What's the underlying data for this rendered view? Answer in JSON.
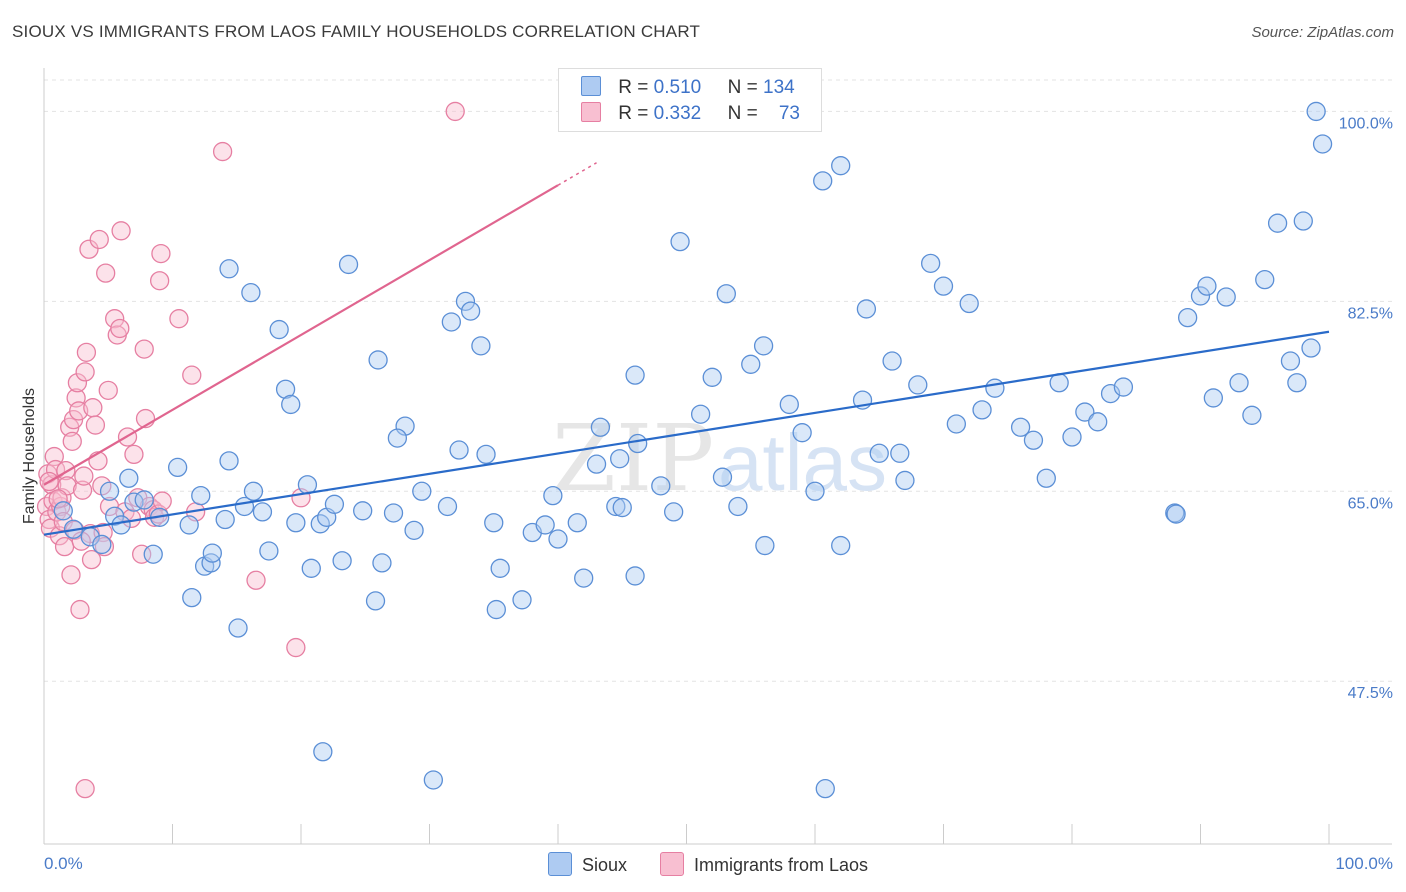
{
  "header": {
    "title": "SIOUX VS IMMIGRANTS FROM LAOS FAMILY HOUSEHOLDS CORRELATION CHART",
    "source": "Source: ZipAtlas.com"
  },
  "legend": {
    "r_label": "R =",
    "n_label": "N =",
    "rows": [
      {
        "r": "0.510",
        "n": "134"
      },
      {
        "r": "0.332",
        "n": "73"
      }
    ]
  },
  "watermark": {
    "zip": "ZIP",
    "atlas": "atlas"
  },
  "colors": {
    "sioux_fill": "#aecbf2",
    "sioux_stroke": "#5b8fd6",
    "sioux_line": "#2a6bc9",
    "laos_fill": "#f8bfd1",
    "laos_stroke": "#e67fa2",
    "laos_line": "#e0658f",
    "tick_text": "#4a7bc8",
    "grid": "#e3e3e3"
  },
  "chart_data": {
    "type": "scatter",
    "title": "SIOUX VS IMMIGRANTS FROM LAOS FAMILY HOUSEHOLDS CORRELATION CHART",
    "xlabel": "",
    "ylabel": "Family Households",
    "xlim": [
      0,
      100
    ],
    "ylim": [
      32.5,
      104
    ],
    "x_tick_labels": [
      "0.0%",
      "100.0%"
    ],
    "y_ticks": [
      {
        "value": 47.5,
        "label": "47.5%"
      },
      {
        "value": 65.0,
        "label": "65.0%"
      },
      {
        "value": 82.5,
        "label": "82.5%"
      },
      {
        "value": 100.0,
        "label": "100.0%"
      }
    ],
    "series": [
      {
        "name": "Sioux",
        "r": 0.51,
        "n": 134,
        "trend": {
          "x": [
            0,
            100
          ],
          "y": [
            61.0,
            79.7
          ]
        },
        "points": [
          [
            1.5,
            63.2
          ],
          [
            2.3,
            61.5
          ],
          [
            3.6,
            60.8
          ],
          [
            4.5,
            60.1
          ],
          [
            5.5,
            62.7
          ],
          [
            6.0,
            61.9
          ],
          [
            5.1,
            65.0
          ],
          [
            7.0,
            64.0
          ],
          [
            6.6,
            66.2
          ],
          [
            7.8,
            64.2
          ],
          [
            8.5,
            59.2
          ],
          [
            9.0,
            62.6
          ],
          [
            10.4,
            67.2
          ],
          [
            11.5,
            55.2
          ],
          [
            12.2,
            64.6
          ],
          [
            11.3,
            61.9
          ],
          [
            12.5,
            58.1
          ],
          [
            13.0,
            58.4
          ],
          [
            13.1,
            59.3
          ],
          [
            14.1,
            62.4
          ],
          [
            14.4,
            67.8
          ],
          [
            15.1,
            52.4
          ],
          [
            15.6,
            63.6
          ],
          [
            14.4,
            85.5
          ],
          [
            16.1,
            83.3
          ],
          [
            16.3,
            65.0
          ],
          [
            17.0,
            63.1
          ],
          [
            17.5,
            59.5
          ],
          [
            18.3,
            79.9
          ],
          [
            18.8,
            74.4
          ],
          [
            19.2,
            73.0
          ],
          [
            19.6,
            62.1
          ],
          [
            20.5,
            65.6
          ],
          [
            20.8,
            57.9
          ],
          [
            21.5,
            62.0
          ],
          [
            22.0,
            62.6
          ],
          [
            22.6,
            63.8
          ],
          [
            23.2,
            58.6
          ],
          [
            21.7,
            41.0
          ],
          [
            23.7,
            85.9
          ],
          [
            24.8,
            63.2
          ],
          [
            25.8,
            54.9
          ],
          [
            26.3,
            58.4
          ],
          [
            26.0,
            77.1
          ],
          [
            27.2,
            63.0
          ],
          [
            28.1,
            71.0
          ],
          [
            28.8,
            61.4
          ],
          [
            29.4,
            65.0
          ],
          [
            30.3,
            38.4
          ],
          [
            31.4,
            63.6
          ],
          [
            31.7,
            80.6
          ],
          [
            32.3,
            68.8
          ],
          [
            32.8,
            82.5
          ],
          [
            33.2,
            81.6
          ],
          [
            34.0,
            78.4
          ],
          [
            34.4,
            68.4
          ],
          [
            35.0,
            62.1
          ],
          [
            35.2,
            54.1
          ],
          [
            35.5,
            57.9
          ],
          [
            37.2,
            55.0
          ],
          [
            38.0,
            61.2
          ],
          [
            39.0,
            61.9
          ],
          [
            39.6,
            64.6
          ],
          [
            40.0,
            60.6
          ],
          [
            41.5,
            62.1
          ],
          [
            42.0,
            57.0
          ],
          [
            43.3,
            70.9
          ],
          [
            44.5,
            63.6
          ],
          [
            44.8,
            68.0
          ],
          [
            45.0,
            63.5
          ],
          [
            46.0,
            75.7
          ],
          [
            46.2,
            69.4
          ],
          [
            46.0,
            57.2
          ],
          [
            48.0,
            65.5
          ],
          [
            49.0,
            63.1
          ],
          [
            49.5,
            88.0
          ],
          [
            51.1,
            72.1
          ],
          [
            52.0,
            75.5
          ],
          [
            52.8,
            66.3
          ],
          [
            53.1,
            83.2
          ],
          [
            54.0,
            63.6
          ],
          [
            55.0,
            76.7
          ],
          [
            56.0,
            78.4
          ],
          [
            56.1,
            60.0
          ],
          [
            58.0,
            73.0
          ],
          [
            59.0,
            70.4
          ],
          [
            60.0,
            65.0
          ],
          [
            60.6,
            93.6
          ],
          [
            60.8,
            37.6
          ],
          [
            62.0,
            95.0
          ],
          [
            62.0,
            60.0
          ],
          [
            63.7,
            73.4
          ],
          [
            64.0,
            81.8
          ],
          [
            65.0,
            68.5
          ],
          [
            66.0,
            77.0
          ],
          [
            66.6,
            68.5
          ],
          [
            67.0,
            66.0
          ],
          [
            68.0,
            74.8
          ],
          [
            69.0,
            86.0
          ],
          [
            70.0,
            83.9
          ],
          [
            71.0,
            71.2
          ],
          [
            72.0,
            82.3
          ],
          [
            73.0,
            72.5
          ],
          [
            74.0,
            74.5
          ],
          [
            76.0,
            70.9
          ],
          [
            77.0,
            69.7
          ],
          [
            78.0,
            66.2
          ],
          [
            79.0,
            75.0
          ],
          [
            80.0,
            70.0
          ],
          [
            81.0,
            72.3
          ],
          [
            82.0,
            71.4
          ],
          [
            83.0,
            74.0
          ],
          [
            84.0,
            74.6
          ],
          [
            88.0,
            63.0
          ],
          [
            88.1,
            62.9
          ],
          [
            89.0,
            81.0
          ],
          [
            90.0,
            83.0
          ],
          [
            90.5,
            83.9
          ],
          [
            91.0,
            73.6
          ],
          [
            92.0,
            82.9
          ],
          [
            93.0,
            75.0
          ],
          [
            94.0,
            72.0
          ],
          [
            95.0,
            84.5
          ],
          [
            96.0,
            89.7
          ],
          [
            97.0,
            77.0
          ],
          [
            97.5,
            75.0
          ],
          [
            98.0,
            89.9
          ],
          [
            99.0,
            100.0
          ],
          [
            99.5,
            97.0
          ],
          [
            98.6,
            78.2
          ],
          [
            43.0,
            67.5
          ],
          [
            27.5,
            69.9
          ]
        ]
      },
      {
        "name": "Immigrants from Laos",
        "r": 0.332,
        "n": 73,
        "trend": {
          "x": [
            0,
            40
          ],
          "y": [
            65.6,
            93.2
          ]
        },
        "points": [
          [
            0.2,
            63.6
          ],
          [
            0.3,
            66.6
          ],
          [
            0.4,
            62.4
          ],
          [
            0.5,
            61.6
          ],
          [
            0.6,
            65.6
          ],
          [
            0.7,
            64.1
          ],
          [
            0.8,
            68.2
          ],
          [
            0.9,
            67.0
          ],
          [
            1.0,
            63.1
          ],
          [
            1.2,
            60.9
          ],
          [
            1.3,
            63.6
          ],
          [
            1.4,
            64.4
          ],
          [
            1.5,
            62.2
          ],
          [
            1.6,
            59.9
          ],
          [
            1.7,
            66.9
          ],
          [
            1.8,
            65.5
          ],
          [
            2.0,
            70.9
          ],
          [
            2.1,
            57.3
          ],
          [
            2.2,
            69.6
          ],
          [
            2.3,
            71.6
          ],
          [
            2.4,
            61.4
          ],
          [
            2.5,
            73.6
          ],
          [
            2.6,
            75.0
          ],
          [
            2.7,
            72.4
          ],
          [
            2.8,
            54.1
          ],
          [
            3.0,
            65.1
          ],
          [
            3.1,
            66.4
          ],
          [
            3.2,
            76.0
          ],
          [
            3.3,
            77.8
          ],
          [
            3.5,
            87.3
          ],
          [
            3.6,
            61.1
          ],
          [
            3.7,
            58.7
          ],
          [
            3.8,
            72.7
          ],
          [
            4.0,
            71.1
          ],
          [
            4.2,
            67.8
          ],
          [
            4.3,
            88.2
          ],
          [
            4.5,
            65.5
          ],
          [
            4.6,
            61.2
          ],
          [
            4.7,
            59.9
          ],
          [
            4.8,
            85.1
          ],
          [
            5.0,
            74.3
          ],
          [
            5.1,
            63.6
          ],
          [
            5.5,
            80.9
          ],
          [
            5.7,
            79.4
          ],
          [
            5.9,
            80.0
          ],
          [
            6.0,
            89.0
          ],
          [
            6.3,
            63.1
          ],
          [
            6.5,
            70.0
          ],
          [
            6.8,
            62.5
          ],
          [
            7.0,
            68.4
          ],
          [
            7.3,
            64.4
          ],
          [
            7.6,
            59.2
          ],
          [
            7.8,
            78.1
          ],
          [
            7.9,
            71.7
          ],
          [
            8.2,
            63.6
          ],
          [
            8.5,
            63.3
          ],
          [
            8.6,
            62.6
          ],
          [
            8.9,
            62.9
          ],
          [
            9.0,
            84.4
          ],
          [
            9.1,
            86.9
          ],
          [
            9.2,
            64.1
          ],
          [
            10.5,
            80.9
          ],
          [
            11.5,
            75.7
          ],
          [
            11.8,
            63.1
          ],
          [
            13.9,
            96.3
          ],
          [
            16.5,
            56.8
          ],
          [
            19.6,
            50.6
          ],
          [
            20.0,
            64.4
          ],
          [
            32.0,
            100.0
          ],
          [
            3.2,
            37.6
          ],
          [
            1.1,
            64.3
          ],
          [
            2.9,
            60.4
          ],
          [
            0.4,
            65.9
          ]
        ]
      }
    ]
  },
  "bottom_legend": [
    {
      "name": "Sioux"
    },
    {
      "name": "Immigrants from Laos"
    }
  ]
}
